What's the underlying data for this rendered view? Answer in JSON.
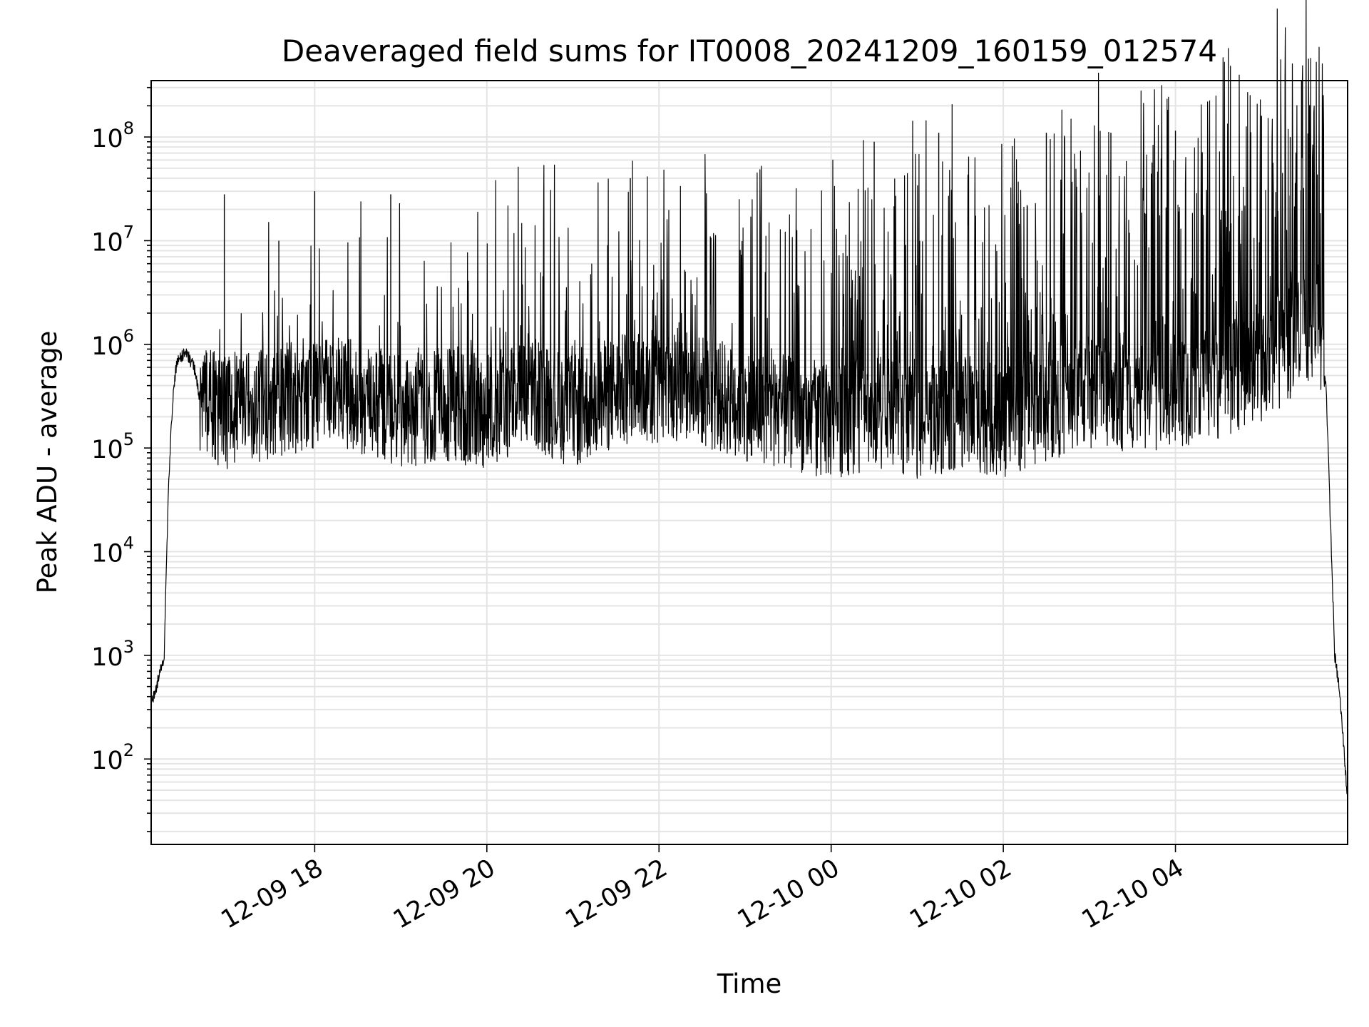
{
  "chart_data": {
    "type": "line",
    "title": "Deaveraged field sums for IT0008_20241209_160159_012574",
    "xlabel": "Time",
    "ylabel": "Peak ADU - average",
    "yscale": "log",
    "ylim": [
      15,
      350000000
    ],
    "xlim": [
      "2024-12-09 16:06",
      "2024-12-10 06:00"
    ],
    "grid": true,
    "line_color": "#000000",
    "x_ticks": [
      {
        "label": "12-09 18",
        "time": "2024-12-09 18:00"
      },
      {
        "label": "12-09 20",
        "time": "2024-12-09 20:00"
      },
      {
        "label": "12-09 22",
        "time": "2024-12-09 22:00"
      },
      {
        "label": "12-10 00",
        "time": "2024-12-10 00:00"
      },
      {
        "label": "12-10 02",
        "time": "2024-12-10 02:00"
      },
      {
        "label": "12-10 04",
        "time": "2024-12-10 04:00"
      }
    ],
    "y_ticks": [
      {
        "base": "10",
        "exp": "2",
        "value": 100
      },
      {
        "base": "10",
        "exp": "3",
        "value": 1000
      },
      {
        "base": "10",
        "exp": "4",
        "value": 10000
      },
      {
        "base": "10",
        "exp": "5",
        "value": 100000
      },
      {
        "base": "10",
        "exp": "6",
        "value": 1000000
      },
      {
        "base": "10",
        "exp": "7",
        "value": 10000000
      },
      {
        "base": "10",
        "exp": "8",
        "value": 100000000
      }
    ],
    "series": [
      {
        "approximate_points": [
          [
            "2024-12-09 16:06",
            350
          ],
          [
            "2024-12-09 16:09",
            420
          ],
          [
            "2024-12-09 16:12",
            700
          ],
          [
            "2024-12-09 16:15",
            900
          ],
          [
            "2024-12-09 16:18",
            40000
          ],
          [
            "2024-12-09 16:21",
            300000
          ],
          [
            "2024-12-09 16:24",
            700000
          ],
          [
            "2024-12-09 16:30",
            850000
          ],
          [
            "2024-12-09 16:36",
            600000
          ],
          [
            "2024-12-09 16:40",
            300000
          ],
          [
            "2024-12-09 17:00",
            250000
          ],
          [
            "2024-12-09 17:30",
            300000
          ],
          [
            "2024-12-09 18:00",
            400000
          ],
          [
            "2024-12-09 18:30",
            350000
          ],
          [
            "2024-12-09 19:00",
            250000
          ],
          [
            "2024-12-09 19:30",
            300000
          ],
          [
            "2024-12-09 20:00",
            250000
          ],
          [
            "2024-12-09 20:30",
            400000
          ],
          [
            "2024-12-09 21:00",
            250000
          ],
          [
            "2024-12-09 21:30",
            400000
          ],
          [
            "2024-12-09 22:00",
            450000
          ],
          [
            "2024-12-09 22:30",
            400000
          ],
          [
            "2024-12-09 23:00",
            300000
          ],
          [
            "2024-12-09 23:30",
            250000
          ],
          [
            "2024-12-10 00:00",
            200000
          ],
          [
            "2024-12-10 00:30",
            250000
          ],
          [
            "2024-12-10 01:00",
            200000
          ],
          [
            "2024-12-10 01:30",
            250000
          ],
          [
            "2024-12-10 02:00",
            200000
          ],
          [
            "2024-12-10 02:30",
            300000
          ],
          [
            "2024-12-10 03:00",
            400000
          ],
          [
            "2024-12-10 03:30",
            350000
          ],
          [
            "2024-12-10 04:00",
            400000
          ],
          [
            "2024-12-10 04:30",
            500000
          ],
          [
            "2024-12-10 05:00",
            700000
          ],
          [
            "2024-12-10 05:30",
            1500000
          ],
          [
            "2024-12-10 05:40",
            2000000
          ],
          [
            "2024-12-10 05:45",
            400000
          ],
          [
            "2024-12-10 05:48",
            20000
          ],
          [
            "2024-12-10 05:51",
            1000
          ],
          [
            "2024-12-10 05:54",
            500
          ],
          [
            "2024-12-10 05:57",
            150
          ],
          [
            "2024-12-10 06:00",
            40
          ]
        ],
        "notable_spikes": [
          [
            "2024-12-09 16:57",
            28000000
          ],
          [
            "2024-12-09 17:35",
            10000000
          ],
          [
            "2024-12-09 18:00",
            30000000
          ],
          [
            "2024-12-09 18:53",
            28000000
          ],
          [
            "2024-12-09 21:40",
            40000000
          ],
          [
            "2024-12-10 00:30",
            90000000
          ],
          [
            "2024-12-10 01:15",
            110000000
          ],
          [
            "2024-12-10 02:30",
            110000000
          ],
          [
            "2024-12-10 03:15",
            110000000
          ],
          [
            "2024-12-10 04:00",
            115000000
          ],
          [
            "2024-12-10 05:00",
            160000000
          ],
          [
            "2024-12-10 05:20",
            100000000
          ]
        ]
      }
    ]
  }
}
